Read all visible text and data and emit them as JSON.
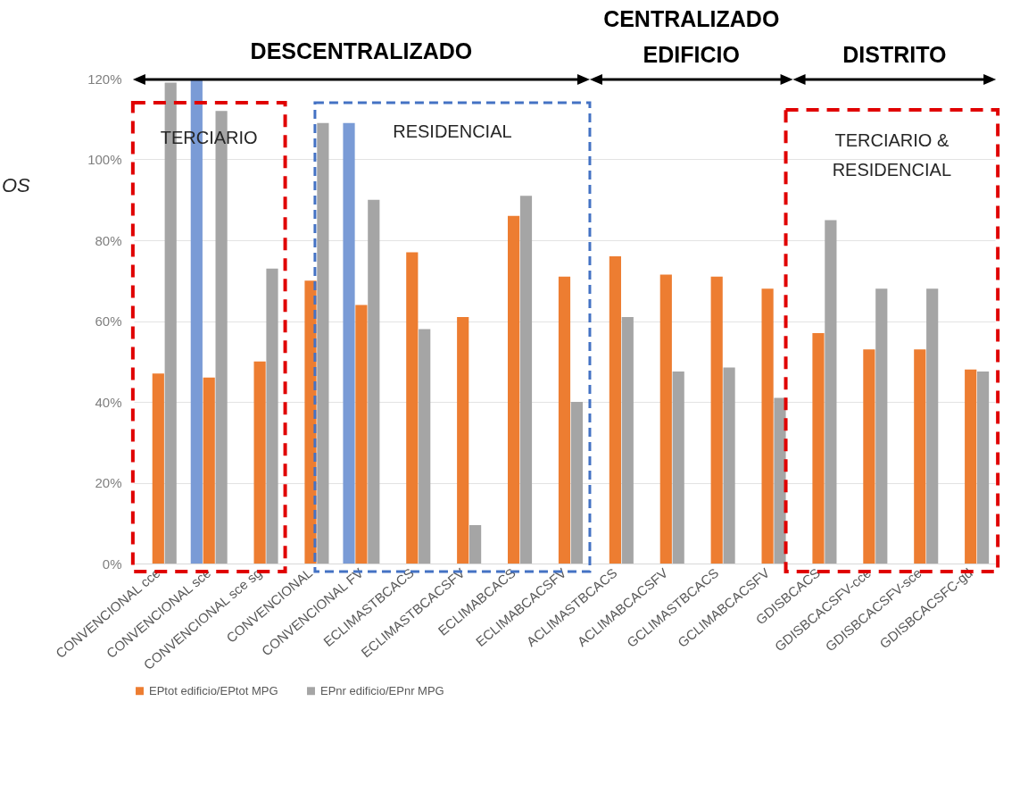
{
  "chart_data": {
    "type": "bar",
    "categories": [
      "CONVENCIONAL cce",
      "CONVENCIONAL sce",
      "CONVENCIONAL sce sg",
      "CONVENCIONAL",
      "CONVENCIONAL FV",
      "ECLIMASTBCACS",
      "ECLIMASTBCACSFV",
      "ECLIMABCACS",
      "ECLIMABCACSFV",
      "ACLIMASTBCACS",
      "ACLIMABCACSFV",
      "GCLIMASTBCACS",
      "GCLIMABCACSFV",
      "GDISBCACS",
      "GDISBCACSFV-cce",
      "GDISBCACSFV-sce",
      "GDISBCACSFC-gd"
    ],
    "series": [
      {
        "color": "#7a9bd6",
        "values": [
          null,
          120,
          null,
          null,
          109,
          null,
          null,
          null,
          null,
          null,
          null,
          null,
          null,
          null,
          null,
          null,
          null
        ]
      },
      {
        "name": "EPtot edificio/EPtot MPG",
        "color": "#ed7d31",
        "values": [
          47,
          46,
          50,
          70,
          64,
          77,
          61,
          86,
          71,
          76,
          71.5,
          71,
          68,
          57,
          53,
          53,
          48
        ]
      },
      {
        "name": "EPnr edificio/EPnr MPG",
        "color": "#a5a5a5",
        "values": [
          119,
          112,
          73,
          109,
          90,
          58,
          9.5,
          91,
          40,
          61,
          47.5,
          48.5,
          41,
          85,
          68,
          68,
          47.5
        ]
      }
    ],
    "ylim": [
      0,
      120
    ],
    "yticks": [
      {
        "value": 0,
        "label": "0%"
      },
      {
        "value": 20,
        "label": "20%"
      },
      {
        "value": 40,
        "label": "40%"
      },
      {
        "value": 60,
        "label": "60%"
      },
      {
        "value": 80,
        "label": "80%"
      },
      {
        "value": 100,
        "label": "100%"
      },
      {
        "value": 120,
        "label": "120%"
      }
    ],
    "grid": "y",
    "legend": "bottom",
    "annotations": [
      "DESCENTRALIZADO",
      "CENTRALIZADO EDIFICIO",
      "DISTRITO",
      "TERCIARIO",
      "RESIDENCIAL",
      "TERCIARIO & RESIDENCIAL",
      "OS"
    ]
  }
}
